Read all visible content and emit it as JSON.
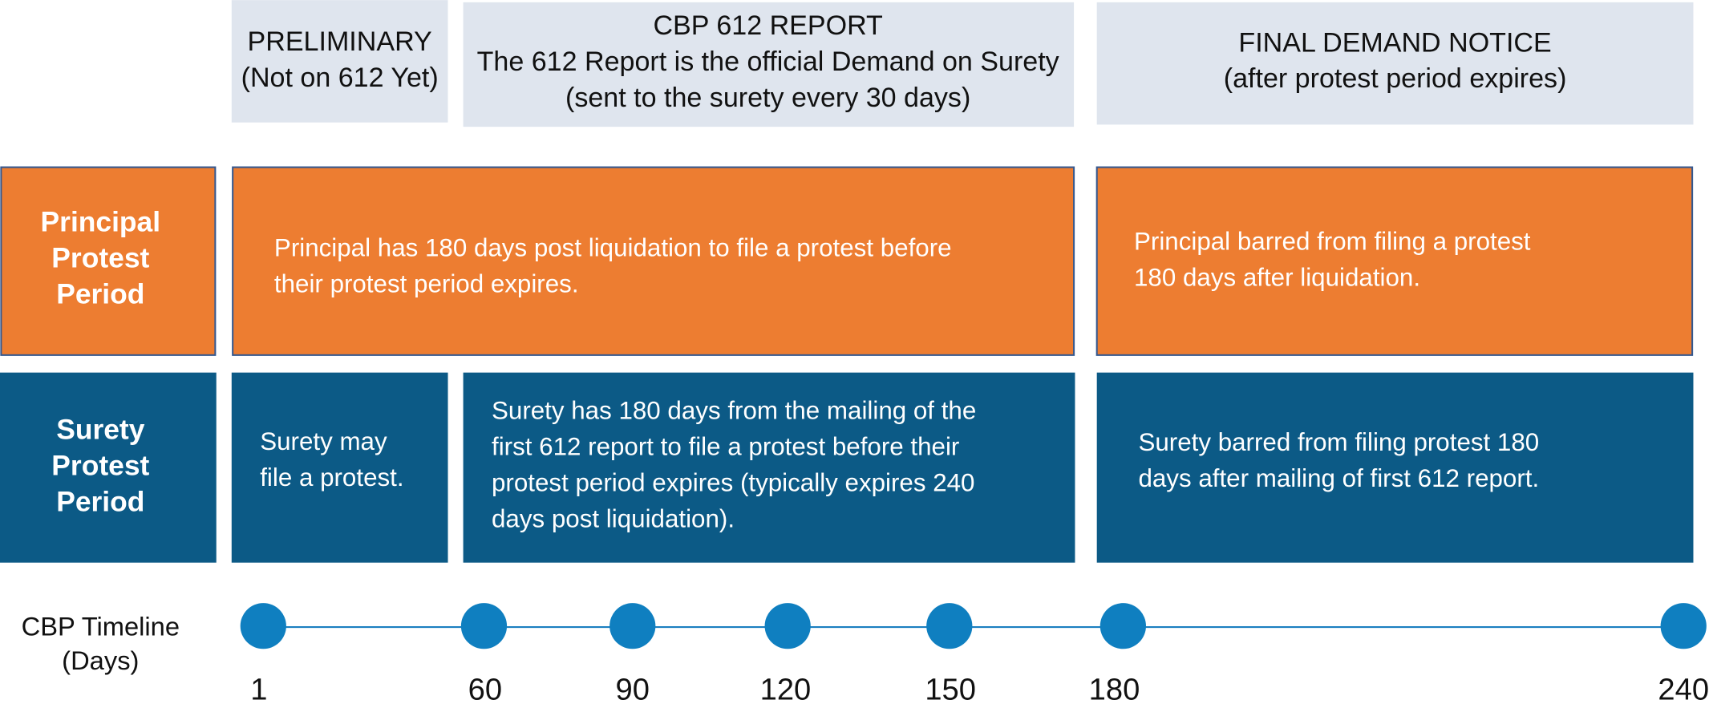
{
  "headers": [
    {
      "lines": [
        "PRELIMINARY",
        "(Not on 612 Yet)"
      ]
    },
    {
      "lines": [
        "CBP 612 REPORT",
        "The 612 Report is the official Demand on Surety",
        "(sent to the surety every 30 days)"
      ]
    },
    {
      "lines": [
        "FINAL DEMAND NOTICE",
        "(after protest period expires)"
      ]
    }
  ],
  "rows": [
    {
      "label": [
        "Principal",
        "Protest",
        "Period"
      ],
      "cells": [
        {
          "lines": [
            "Principal has 180 days post liquidation to file a protest before",
            "their protest period expires."
          ]
        },
        {
          "lines": [
            "Principal barred from filing a protest",
            "180 days after liquidation."
          ]
        }
      ]
    },
    {
      "label": [
        "Surety",
        "Protest",
        "Period"
      ],
      "cells": [
        {
          "lines": [
            "Surety may",
            "file a protest."
          ]
        },
        {
          "lines": [
            "Surety has 180 days from the mailing of the",
            "first 612 report to file a protest before their",
            "protest period expires (typically expires 240",
            "days post liquidation)."
          ]
        },
        {
          "lines": [
            "Surety barred from filing protest 180",
            "days after mailing of first 612 report."
          ]
        }
      ]
    }
  ],
  "timeline": {
    "label": [
      "CBP Timeline",
      "(Days)"
    ],
    "points": [
      "1",
      "60",
      "90",
      "120",
      "150",
      "180",
      "240"
    ]
  }
}
